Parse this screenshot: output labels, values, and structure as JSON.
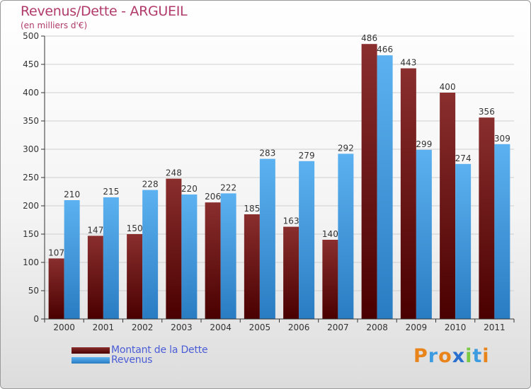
{
  "chart_data": {
    "type": "bar",
    "title": "Revenus/Dette - ARGUEIL",
    "subtitle": "(en milliers d'€)",
    "categories": [
      "2000",
      "2001",
      "2002",
      "2003",
      "2004",
      "2005",
      "2006",
      "2007",
      "2008",
      "2009",
      "2010",
      "2011"
    ],
    "series": [
      {
        "name": "Montant de la Dette",
        "color": "#7a1a1a",
        "values": [
          107,
          147,
          150,
          248,
          206,
          185,
          163,
          140,
          486,
          443,
          400,
          356
        ]
      },
      {
        "name": "Revenus",
        "color": "#4aa3e8",
        "values": [
          210,
          215,
          228,
          220,
          222,
          283,
          279,
          292,
          466,
          299,
          274,
          309
        ]
      }
    ],
    "ylim": [
      0,
      500
    ],
    "yticks": [
      0,
      50,
      100,
      150,
      200,
      250,
      300,
      350,
      400,
      450,
      500
    ],
    "grid": true,
    "legend_position": "bottom-left"
  },
  "logo": {
    "letters": [
      "P",
      "r",
      "o",
      "x",
      "i",
      "t",
      "i"
    ],
    "colors": [
      "#e8841a",
      "#3d9be0",
      "#e8841a",
      "#2a6fd0",
      "#7ac943",
      "#3d9be0",
      "#e8841a"
    ]
  }
}
